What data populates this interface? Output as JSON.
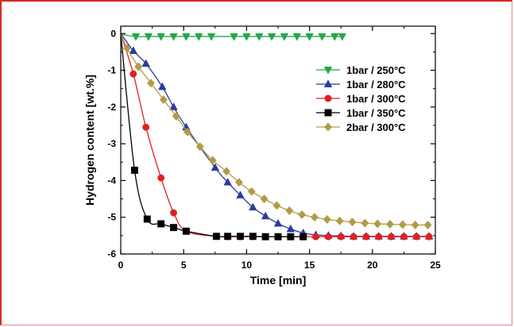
{
  "chart_data": {
    "type": "line",
    "xlabel": "Time [min]",
    "ylabel": "Hydrogen content  [wt.%]",
    "xlim": [
      0,
      25
    ],
    "ylim": [
      -6,
      0.2
    ],
    "xticks": [
      0,
      5,
      10,
      15,
      20,
      25
    ],
    "yticks": [
      0,
      -1,
      -2,
      -3,
      -4,
      -5,
      -6
    ],
    "legend_position": "upper-right",
    "grid": false,
    "series": [
      {
        "name": "1bar / 250°C",
        "color": "#22a84a",
        "marker": "triangle-down",
        "x": [
          0,
          1.2,
          2.2,
          3.2,
          4.2,
          5.2,
          6.2,
          7.2,
          9.0,
          10.0,
          11.0,
          12.0,
          13.0,
          14.0,
          15.0,
          16.0,
          17.0,
          17.6
        ],
        "y": [
          -0.02,
          -0.08,
          -0.08,
          -0.08,
          -0.08,
          -0.08,
          -0.08,
          -0.08,
          -0.08,
          -0.08,
          -0.08,
          -0.08,
          -0.08,
          -0.08,
          -0.08,
          -0.08,
          -0.08,
          -0.08
        ]
      },
      {
        "name": "1bar / 280°C",
        "color": "#2b3b9e",
        "marker": "triangle-up",
        "x": [
          0,
          1.0,
          2.0,
          3.3,
          4.2,
          5.2,
          7.5,
          8.5,
          9.5,
          10.5,
          11.5,
          12.5,
          13.5,
          14.5,
          15.5,
          16.5,
          17.5,
          18.5,
          19.5,
          20.5,
          21.5,
          22.5,
          23.5,
          24.5
        ],
        "y": [
          0,
          -0.47,
          -0.82,
          -1.45,
          -2.0,
          -2.55,
          -3.65,
          -4.05,
          -4.4,
          -4.73,
          -4.97,
          -5.17,
          -5.32,
          -5.43,
          -5.48,
          -5.5,
          -5.51,
          -5.52,
          -5.52,
          -5.52,
          -5.52,
          -5.52,
          -5.52,
          -5.52
        ]
      },
      {
        "name": "1bar / 300°C",
        "color": "#e02020",
        "marker": "circle",
        "x": [
          0,
          1.0,
          2.0,
          3.2,
          4.2,
          5.2,
          7.6,
          8.5,
          9.5,
          10.5,
          11.5,
          12.5,
          13.5,
          14.5,
          15.5,
          16.5,
          17.5,
          18.5,
          19.5,
          20.5,
          21.5,
          22.5,
          23.5,
          24.5
        ],
        "y": [
          0,
          -1.1,
          -2.55,
          -3.93,
          -4.88,
          -5.38,
          -5.52,
          -5.53,
          -5.53,
          -5.53,
          -5.53,
          -5.53,
          -5.53,
          -5.53,
          -5.53,
          -5.53,
          -5.53,
          -5.53,
          -5.53,
          -5.53,
          -5.53,
          -5.53,
          -5.53,
          -5.53
        ]
      },
      {
        "name": "1bar / 350°C",
        "color": "#000000",
        "marker": "square",
        "x": [
          0,
          1.1,
          2.1,
          3.2,
          4.2,
          5.2,
          7.6,
          8.5,
          9.5,
          10.5,
          11.5,
          12.5,
          13.5,
          14.5
        ],
        "y": [
          0,
          -3.72,
          -5.05,
          -5.18,
          -5.28,
          -5.38,
          -5.52,
          -5.52,
          -5.52,
          -5.52,
          -5.53,
          -5.53,
          -5.53,
          -5.53
        ]
      },
      {
        "name": "2bar / 300°C",
        "color": "#b39a45",
        "marker": "diamond",
        "x": [
          0,
          0.5,
          1.4,
          2.4,
          3.4,
          4.4,
          5.3,
          6.3,
          7.3,
          8.4,
          9.4,
          10.4,
          11.4,
          12.4,
          13.4,
          14.4,
          15.4,
          16.4,
          17.4,
          18.4,
          19.4,
          20.4,
          21.4,
          22.4,
          23.4,
          24.4
        ],
        "y": [
          0,
          -0.4,
          -0.9,
          -1.35,
          -1.8,
          -2.25,
          -2.68,
          -3.08,
          -3.45,
          -3.75,
          -4.05,
          -4.3,
          -4.5,
          -4.68,
          -4.82,
          -4.93,
          -5.0,
          -5.06,
          -5.1,
          -5.13,
          -5.16,
          -5.18,
          -5.19,
          -5.2,
          -5.21,
          -5.21
        ]
      }
    ]
  }
}
